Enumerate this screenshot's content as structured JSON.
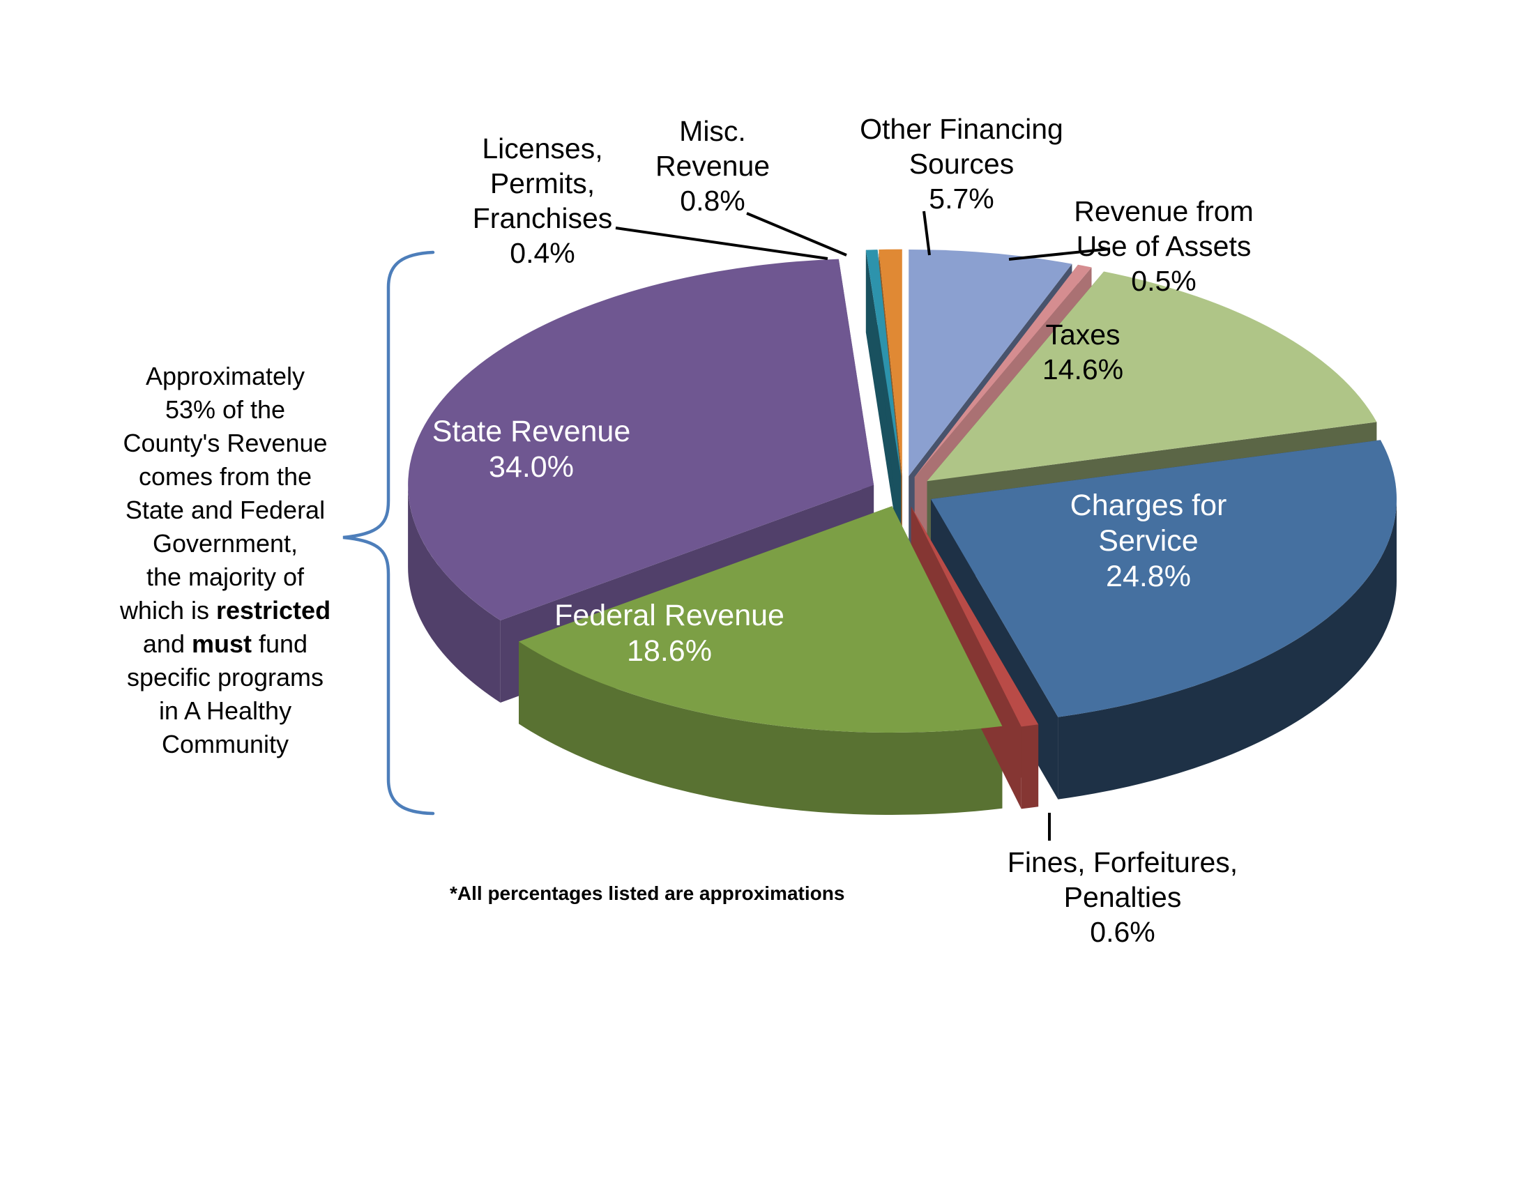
{
  "page": {
    "background": "#FFFFFF"
  },
  "annotation": {
    "lines": [
      [
        {
          "t": "Approximately"
        }
      ],
      [
        {
          "t": "53% of the"
        }
      ],
      [
        {
          "t": "County's Revenue"
        }
      ],
      [
        {
          "t": "comes from the"
        }
      ],
      [
        {
          "t": "State and Federal"
        }
      ],
      [
        {
          "t": "Government,"
        }
      ],
      [
        {
          "t": "the majority of"
        }
      ],
      [
        {
          "t": "which is "
        },
        {
          "t": "restricted",
          "b": true
        }
      ],
      [
        {
          "t": "and "
        },
        {
          "t": "must",
          "b": true
        },
        {
          "t": " fund"
        }
      ],
      [
        {
          "t": "specific programs"
        }
      ],
      [
        {
          "t": "in A Healthy"
        }
      ],
      [
        {
          "t": "Community"
        }
      ]
    ],
    "brace_color": "#4D7EBA"
  },
  "footnote": "*All percentages listed are approximations",
  "chart_data": {
    "type": "pie",
    "style": "3d-exploded",
    "start_angle": "12 o'clock, clockwise",
    "total": 100,
    "legend_position": "none",
    "slices": [
      {
        "label": "Other Financing Sources",
        "value": 5.7,
        "pct_label": "5.7%",
        "color": "#8BA0D0",
        "label_lines": [
          "Other Financing",
          "Sources",
          "5.7%"
        ],
        "label_style": "outside-black"
      },
      {
        "label": "Revenue from Use of Assets",
        "value": 0.5,
        "pct_label": "0.5%",
        "color": "#D58D90",
        "label_lines": [
          "Revenue from",
          "Use of Assets",
          "0.5%"
        ],
        "label_style": "outside-black"
      },
      {
        "label": "Taxes",
        "value": 14.6,
        "pct_label": "14.6%",
        "color": "#AFC587",
        "label_lines": [
          "Taxes",
          "14.6%"
        ],
        "label_style": "on-slice-black"
      },
      {
        "label": "Charges for Service",
        "value": 24.8,
        "pct_label": "24.8%",
        "color": "#4570A0",
        "label_lines": [
          "Charges for",
          "Service",
          "24.8%"
        ],
        "label_style": "inside-white"
      },
      {
        "label": "Fines, Forfeitures, Penalties",
        "value": 0.6,
        "pct_label": "0.6%",
        "color": "#B94B47",
        "label_lines": [
          "Fines, Forfeitures,",
          "Penalties",
          "0.6%"
        ],
        "label_style": "outside-black"
      },
      {
        "label": "Federal Revenue",
        "value": 18.6,
        "pct_label": "18.6%",
        "color": "#7C9F45",
        "label_lines": [
          "Federal Revenue",
          "18.6%"
        ],
        "label_style": "inside-white"
      },
      {
        "label": "State Revenue",
        "value": 34.0,
        "pct_label": "34.0%",
        "color": "#6F5791",
        "label_lines": [
          "State Revenue",
          "34.0%"
        ],
        "label_style": "inside-white"
      },
      {
        "label": "Licenses, Permits, Franchises",
        "value": 0.4,
        "pct_label": "0.4%",
        "color": "#2D93AC",
        "label_lines": [
          "Licenses,",
          "Permits,",
          "Franchises",
          "0.4%"
        ],
        "label_style": "outside-black"
      },
      {
        "label": "Misc. Revenue",
        "value": 0.8,
        "pct_label": "0.8%",
        "color": "#E08934",
        "label_lines": [
          "Misc.",
          "Revenue",
          "0.8%"
        ],
        "label_style": "outside-black"
      }
    ]
  }
}
